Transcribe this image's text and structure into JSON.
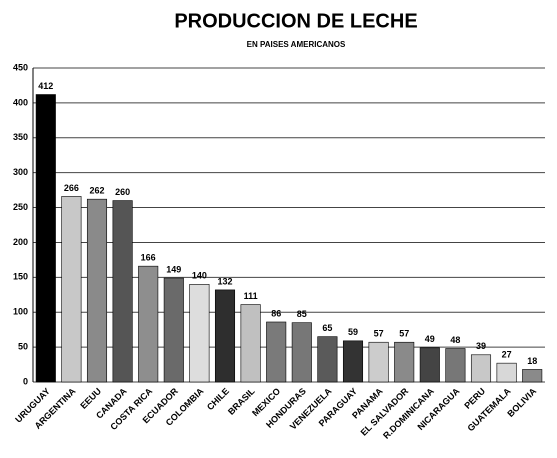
{
  "chart_data": {
    "type": "bar",
    "title": "PRODUCCION DE LECHE",
    "subtitle": "EN PAISES AMERICANOS",
    "categories": [
      "URUGUAY",
      "ARGENTINA",
      "EEUU",
      "CANADA",
      "COSTA RICA",
      "ECUADOR",
      "COLOMBIA",
      "CHILE",
      "BRASIL",
      "MEXICO",
      "HONDURAS",
      "VENEZUELA",
      "PARAGUAY",
      "PANAMA",
      "EL SALVADOR",
      "R.DOMINICANA",
      "NICARAGUA",
      "PERU",
      "GUATEMALA",
      "BOLIVIA"
    ],
    "values": [
      412,
      266,
      262,
      260,
      166,
      149,
      140,
      132,
      111,
      86,
      85,
      65,
      59,
      57,
      57,
      49,
      48,
      39,
      27,
      18
    ],
    "colors": [
      "#000000",
      "#c8c8c8",
      "#8a8a8a",
      "#555555",
      "#8e8e8e",
      "#6a6a6a",
      "#dddddd",
      "#2e2e2e",
      "#c0c0c0",
      "#7a7a7a",
      "#777777",
      "#5a5a5a",
      "#333333",
      "#cccccc",
      "#8a8a8a",
      "#444444",
      "#777777",
      "#c8c8c8",
      "#d8d8d8",
      "#8a8a8a"
    ],
    "ylim": [
      0,
      450
    ],
    "yticks": [
      0,
      50,
      100,
      150,
      200,
      250,
      300,
      350,
      400,
      450
    ],
    "grid": true
  }
}
